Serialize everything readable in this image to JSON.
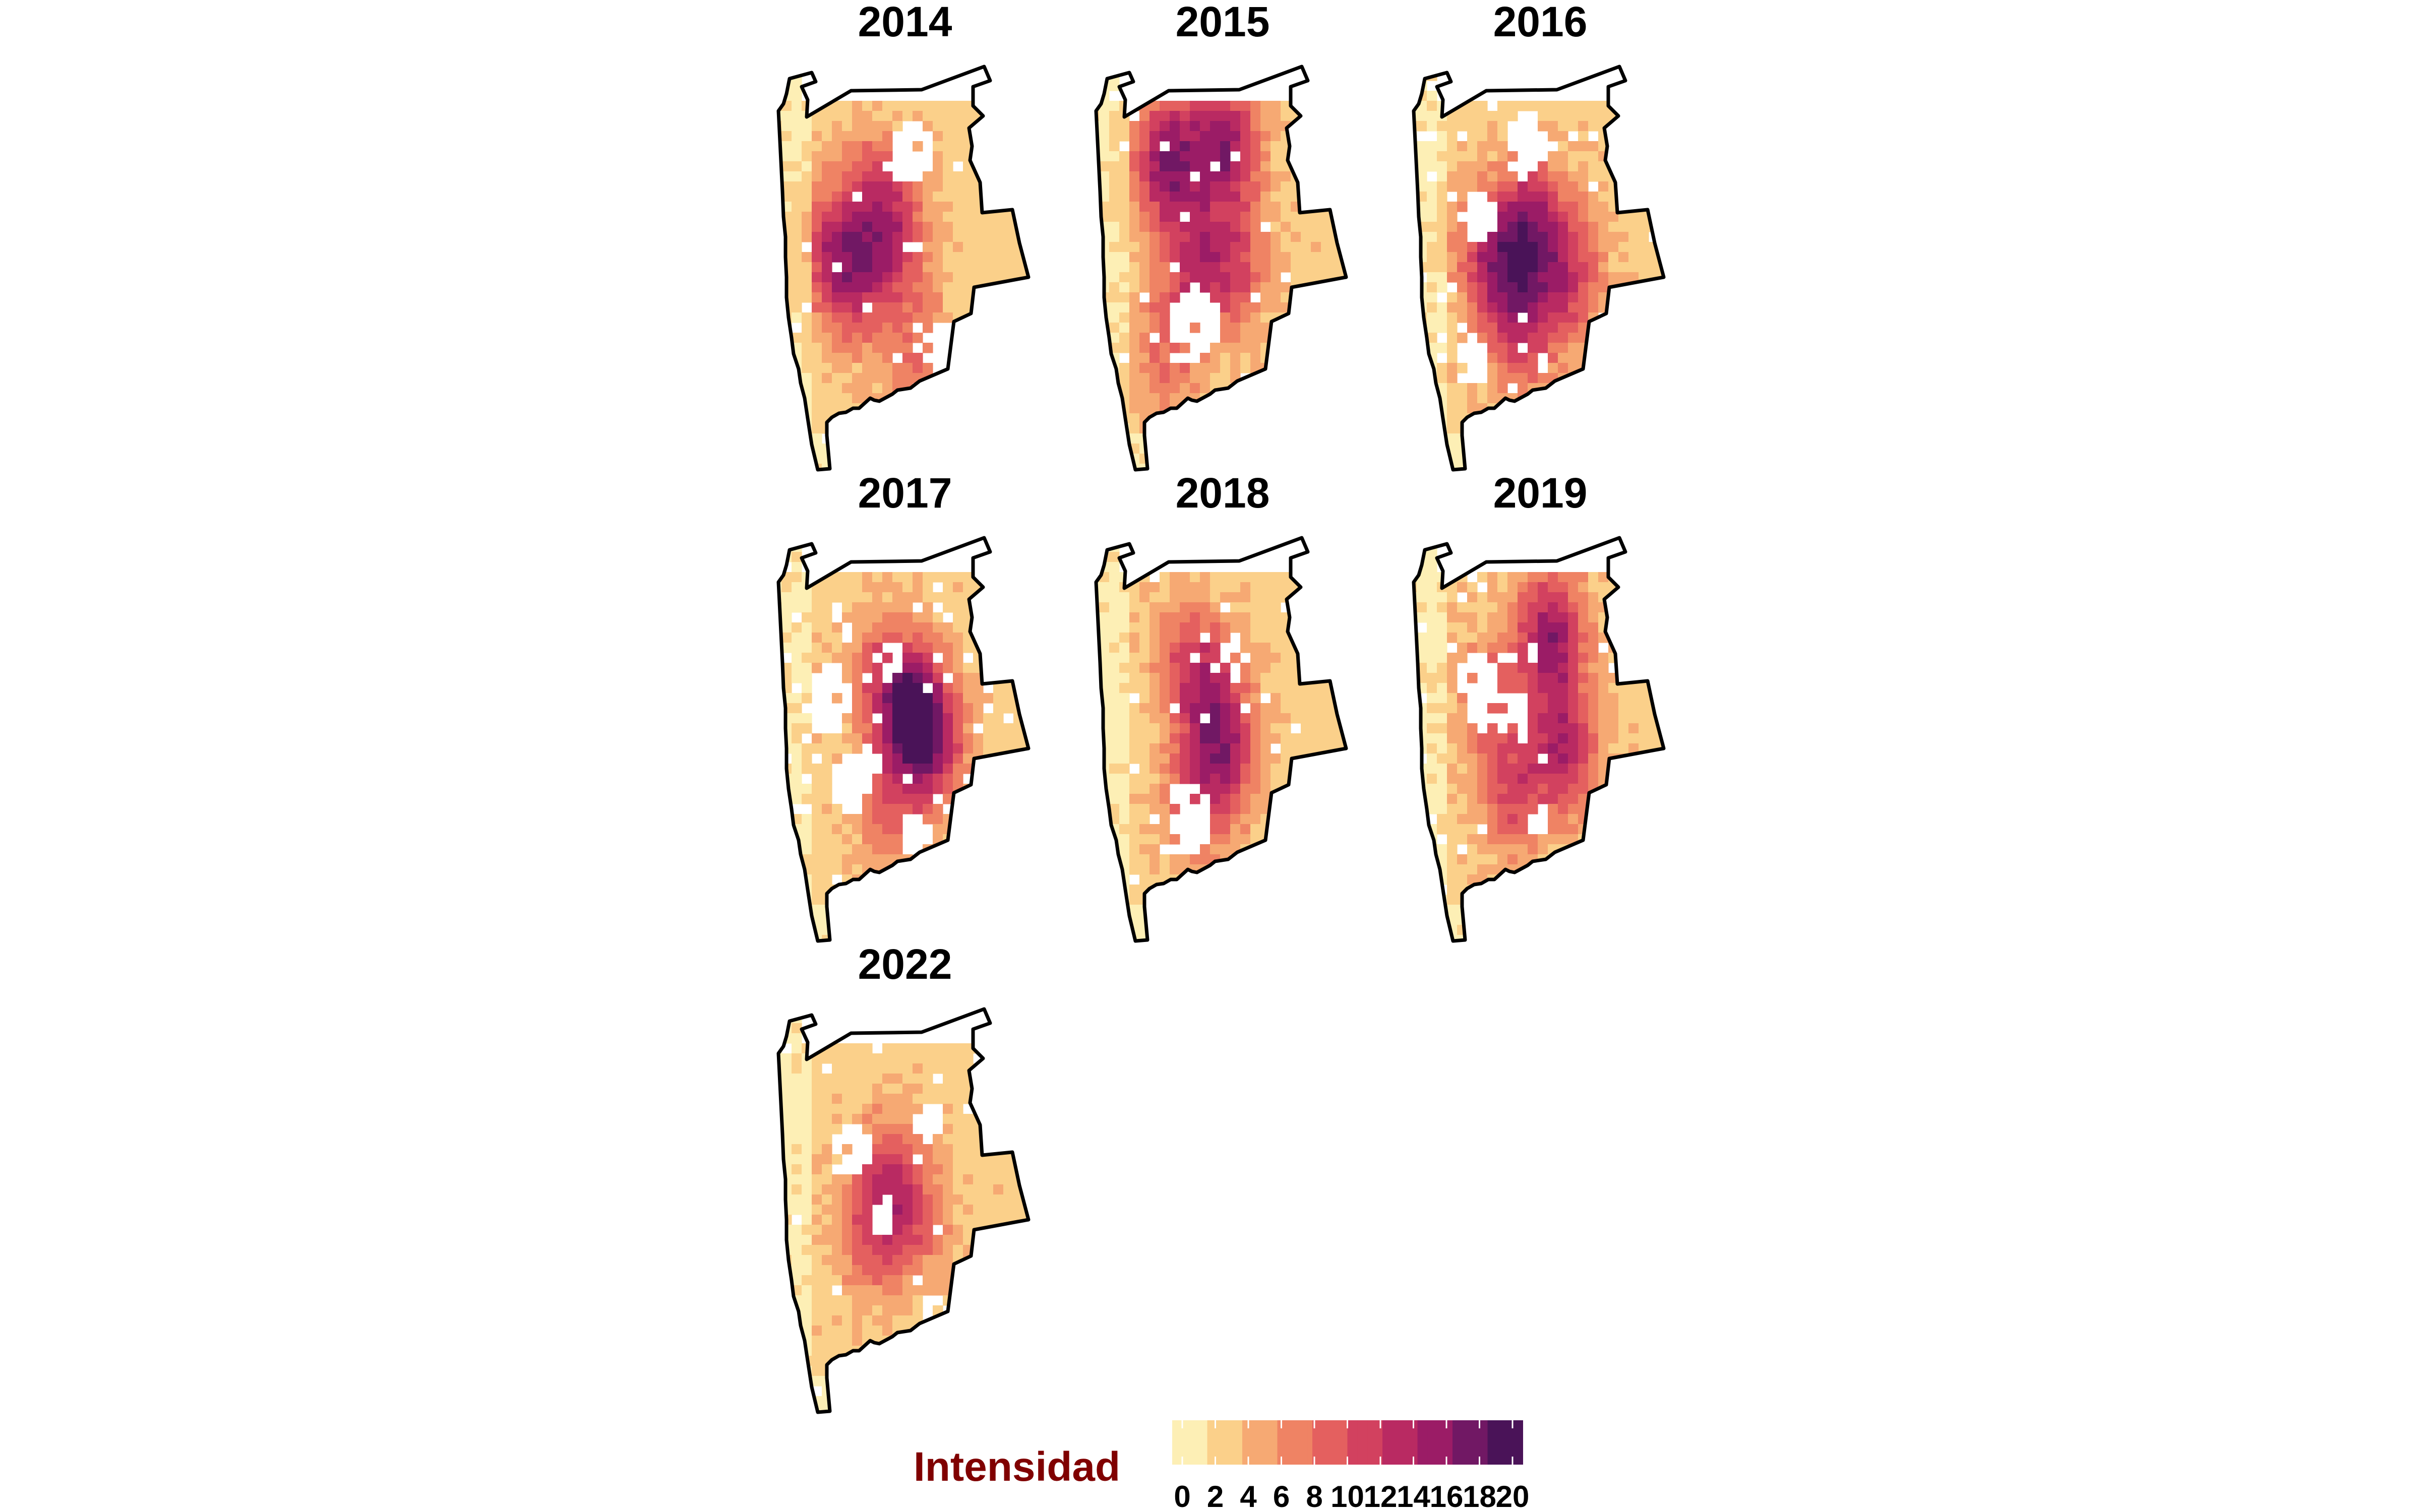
{
  "chart_data": {
    "type": "heatmap",
    "description_kind": "small-multiple density maps",
    "panels": [
      {
        "year": "2014",
        "hotspots": [
          [
            0.32,
            0.52,
            0.55
          ],
          [
            0.48,
            0.42,
            0.5
          ],
          [
            0.38,
            0.3,
            0.35
          ],
          [
            0.22,
            0.45,
            0.45
          ],
          [
            0.55,
            0.7,
            0.3
          ]
        ],
        "gaps": [
          [
            0.53,
            0.22,
            0.08
          ],
          [
            0.66,
            0.7,
            0.07
          ]
        ]
      },
      {
        "year": "2015",
        "hotspots": [
          [
            0.3,
            0.24,
            0.85
          ],
          [
            0.52,
            0.2,
            0.8
          ],
          [
            0.4,
            0.48,
            0.5
          ],
          [
            0.56,
            0.5,
            0.45
          ],
          [
            0.3,
            0.7,
            0.35
          ]
        ],
        "gaps": [
          [
            0.4,
            0.63,
            0.09
          ],
          [
            0.62,
            0.82,
            0.07
          ]
        ]
      },
      {
        "year": "2016",
        "hotspots": [
          [
            0.48,
            0.38,
            0.6
          ],
          [
            0.4,
            0.52,
            0.55
          ],
          [
            0.62,
            0.52,
            0.55
          ],
          [
            0.3,
            0.45,
            0.4
          ],
          [
            0.45,
            0.68,
            0.35
          ]
        ],
        "gaps": [
          [
            0.45,
            0.2,
            0.08
          ],
          [
            0.28,
            0.38,
            0.07
          ],
          [
            0.25,
            0.72,
            0.06
          ]
        ]
      },
      {
        "year": "2017",
        "hotspots": [
          [
            0.55,
            0.44,
            1.0
          ],
          [
            0.42,
            0.34,
            0.4
          ],
          [
            0.45,
            0.66,
            0.35
          ],
          [
            0.62,
            0.52,
            0.4
          ]
        ],
        "gaps": [
          [
            0.22,
            0.4,
            0.08
          ],
          [
            0.3,
            0.6,
            0.07
          ],
          [
            0.45,
            0.3,
            0.05
          ],
          [
            0.36,
            0.55,
            0.05
          ],
          [
            0.55,
            0.72,
            0.05
          ]
        ]
      },
      {
        "year": "2018",
        "hotspots": [
          [
            0.48,
            0.42,
            0.55
          ],
          [
            0.38,
            0.3,
            0.4
          ],
          [
            0.52,
            0.56,
            0.45
          ],
          [
            0.4,
            0.65,
            0.35
          ]
        ],
        "gaps": [
          [
            0.38,
            0.68,
            0.09
          ],
          [
            0.55,
            0.3,
            0.05
          ]
        ]
      },
      {
        "year": "2019",
        "hotspots": [
          [
            0.55,
            0.25,
            0.8
          ],
          [
            0.6,
            0.52,
            0.7
          ],
          [
            0.4,
            0.62,
            0.45
          ],
          [
            0.32,
            0.4,
            0.35
          ]
        ],
        "gaps": [
          [
            0.28,
            0.38,
            0.09
          ],
          [
            0.42,
            0.45,
            0.06
          ],
          [
            0.52,
            0.7,
            0.05
          ]
        ]
      },
      {
        "year": "2022",
        "hotspots": [
          [
            0.45,
            0.4,
            0.4
          ],
          [
            0.38,
            0.55,
            0.4
          ],
          [
            0.55,
            0.52,
            0.35
          ]
        ],
        "gaps": [
          [
            0.3,
            0.35,
            0.07
          ],
          [
            0.42,
            0.5,
            0.05
          ],
          [
            0.6,
            0.28,
            0.05
          ],
          [
            0.62,
            0.75,
            0.06
          ]
        ]
      }
    ],
    "legend": {
      "title": "Intensidad",
      "ticks": [
        "0",
        "2",
        "4",
        "6",
        "8",
        "10",
        "12",
        "14",
        "16",
        "18",
        "20"
      ],
      "range": [
        0,
        20
      ],
      "colors": [
        "#fdefb5",
        "#fbd08a",
        "#f6a973",
        "#ef8364",
        "#e4605f",
        "#d2415f",
        "#b92a62",
        "#9b1c66",
        "#711864",
        "#4a1358"
      ]
    }
  },
  "style": {
    "outline_color": "#000000",
    "legend_title_color": "#800000"
  }
}
